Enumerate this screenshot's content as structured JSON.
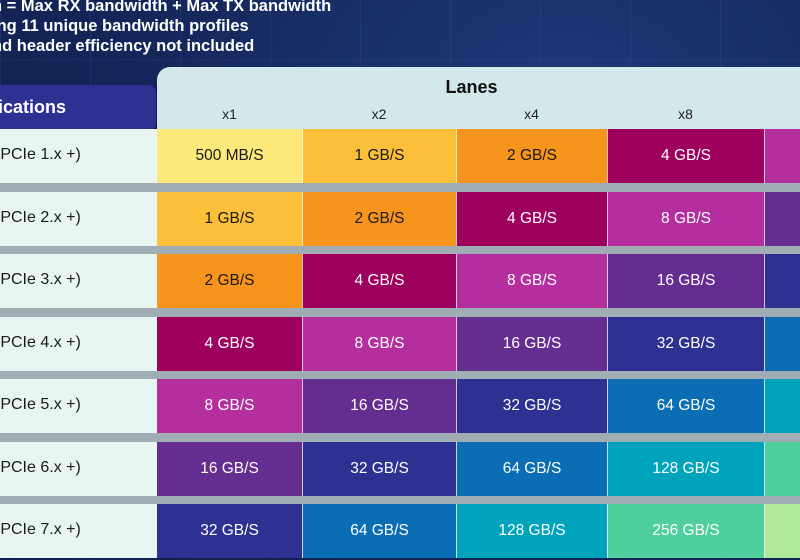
{
  "notes": [
    "n = Max RX bandwidth + Max TX bandwidth",
    "ing 11 unique bandwidth profiles",
    "nd header efficiency not included"
  ],
  "spec_header": "ications",
  "lanes": {
    "title": "Lanes",
    "columns": [
      "x1",
      "x2",
      "x4",
      "x8",
      ""
    ]
  },
  "rows": [
    {
      "label": "(PCIe 1.x +)",
      "values": [
        "500 MB/S",
        "1 GB/S",
        "2 GB/S",
        "4 GB/S",
        ""
      ]
    },
    {
      "label": "(PCIe 2.x +)",
      "values": [
        "1 GB/S",
        "2 GB/S",
        "4 GB/S",
        "8 GB/S",
        ""
      ]
    },
    {
      "label": "(PCIe 3.x +)",
      "values": [
        "2 GB/S",
        "4 GB/S",
        "8 GB/S",
        "16 GB/S",
        ""
      ]
    },
    {
      "label": "(PCIe 4.x +)",
      "values": [
        "4 GB/S",
        "8 GB/S",
        "16 GB/S",
        "32 GB/S",
        ""
      ]
    },
    {
      "label": "(PCIe 5.x +)",
      "values": [
        "8 GB/S",
        "16 GB/S",
        "32 GB/S",
        "64 GB/S",
        ""
      ]
    },
    {
      "label": "(PCIe 6.x +)",
      "values": [
        "16 GB/S",
        "32 GB/S",
        "64 GB/S",
        "128 GB/S",
        ""
      ]
    },
    {
      "label": "(PCIe 7.x +)",
      "values": [
        "32 GB/S",
        "64 GB/S",
        "128 GB/S",
        "256 GB/S",
        ""
      ]
    }
  ],
  "color_levels": {
    "0": {
      "bg": "#fde97a",
      "fg": "#1a1a1a"
    },
    "1": {
      "bg": "#fbbf3a",
      "fg": "#1a1a1a"
    },
    "2": {
      "bg": "#f7941d",
      "fg": "#1a1a1a"
    },
    "3": {
      "bg": "#9e005d",
      "fg": "#ffffff"
    },
    "4": {
      "bg": "#b52e9e",
      "fg": "#ffffff"
    },
    "5": {
      "bg": "#662d91",
      "fg": "#ffffff"
    },
    "6": {
      "bg": "#2e3192",
      "fg": "#ffffff"
    },
    "7": {
      "bg": "#0b6eb5",
      "fg": "#ffffff"
    },
    "8": {
      "bg": "#00a3bc",
      "fg": "#ffffff"
    },
    "9": {
      "bg": "#4fcf9c",
      "fg": "#ffffff"
    },
    "10": {
      "bg": "#b0e89a",
      "fg": "#ffffff"
    }
  }
}
